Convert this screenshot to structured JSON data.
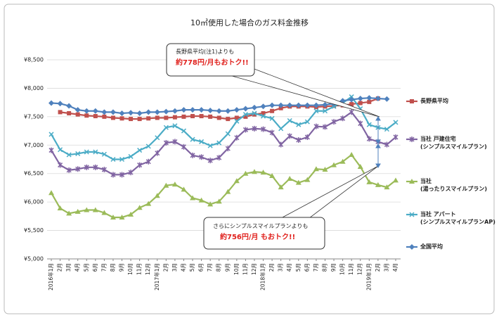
{
  "chart_data": {
    "type": "line",
    "title": "10㎥使用した場合のガス料金推移",
    "categories": [
      "2016年1月",
      "2月",
      "3月",
      "4月",
      "5月",
      "6月",
      "7月",
      "8月",
      "9月",
      "10月",
      "11月",
      "12月",
      "2017年1月",
      "2月",
      "3月",
      "4月",
      "5月",
      "6月",
      "7月",
      "8月",
      "9月",
      "10月",
      "11月",
      "12月",
      "2018年1月",
      "2月",
      "3月",
      "4月",
      "5月",
      "6月",
      "7月",
      "8月",
      "9月",
      "10月",
      "11月",
      "12月",
      "2019年1月",
      "2月",
      "3月",
      "4月"
    ],
    "ylim": [
      5000,
      8500
    ],
    "yticks": [
      {
        "value": 5000,
        "label": "¥5,000"
      },
      {
        "value": 5500,
        "label": "¥5,500"
      },
      {
        "value": 6000,
        "label": "¥6,000"
      },
      {
        "value": 6500,
        "label": "¥6,500"
      },
      {
        "value": 7000,
        "label": "¥7,000"
      },
      {
        "value": 7500,
        "label": "¥7,500"
      },
      {
        "value": 8000,
        "label": "¥8,000"
      },
      {
        "value": 8500,
        "label": "¥8,500"
      }
    ],
    "series": [
      {
        "name": "長野県平均",
        "color": "#c0504d",
        "marker": "square",
        "values": [
          null,
          7580,
          7560,
          7540,
          7520,
          7510,
          7500,
          7480,
          7470,
          7460,
          7460,
          7470,
          7480,
          7480,
          7490,
          7500,
          7510,
          7510,
          7500,
          7480,
          7460,
          7480,
          7500,
          7540,
          7560,
          7600,
          7650,
          7680,
          7680,
          7680,
          7670,
          7680,
          7690,
          7700,
          7720,
          7740,
          7760,
          7820,
          null,
          null
        ]
      },
      {
        "name": "当社 戸建住宅\n(シンプルスマイルプラン)",
        "color": "#8064a2",
        "marker": "star",
        "values": [
          6910,
          6650,
          6560,
          6580,
          6610,
          6610,
          6570,
          6480,
          6480,
          6520,
          6650,
          6710,
          6860,
          7040,
          7060,
          6970,
          6820,
          6790,
          6730,
          6780,
          6940,
          7130,
          7270,
          7290,
          7280,
          7220,
          7010,
          7160,
          7090,
          7140,
          7330,
          7320,
          7410,
          7470,
          7580,
          7380,
          7110,
          7060,
          7010,
          7140
        ]
      },
      {
        "name": "当社\n(湯ったりスマイルプラン)",
        "color": "#9bbb59",
        "marker": "triangle",
        "values": [
          6160,
          5890,
          5800,
          5830,
          5860,
          5860,
          5810,
          5730,
          5730,
          5780,
          5900,
          5970,
          6110,
          6290,
          6310,
          6220,
          6070,
          6030,
          5960,
          6010,
          6180,
          6370,
          6500,
          6530,
          6520,
          6460,
          6260,
          6410,
          6340,
          6390,
          6580,
          6570,
          6650,
          6710,
          6830,
          6620,
          6350,
          6300,
          6260,
          6380
        ]
      },
      {
        "name": "当社 アパート\n(シンプルスマイルプランAP)",
        "color": "#4bacc6",
        "marker": "x",
        "values": [
          7190,
          6920,
          6830,
          6850,
          6880,
          6880,
          6840,
          6750,
          6750,
          6800,
          6910,
          6980,
          7130,
          7310,
          7340,
          7250,
          7100,
          7060,
          6990,
          7040,
          7200,
          7420,
          7540,
          7560,
          7510,
          7470,
          7290,
          7430,
          7360,
          7410,
          7600,
          7600,
          7680,
          7740,
          7850,
          7640,
          7360,
          7310,
          7280,
          7400
        ]
      },
      {
        "name": "全国平均",
        "color": "#4f81bd",
        "marker": "diamond",
        "values": [
          7740,
          7730,
          7690,
          7620,
          7600,
          7600,
          7580,
          7580,
          7560,
          7570,
          7560,
          7580,
          7580,
          7590,
          7600,
          7620,
          7620,
          7620,
          7610,
          7600,
          7600,
          7620,
          7640,
          7660,
          7680,
          7700,
          7700,
          7700,
          7700,
          7700,
          7700,
          7710,
          7730,
          7780,
          7800,
          7820,
          7830,
          7820,
          7810,
          null
        ]
      }
    ],
    "annotations": [
      {
        "lines": [
          "長野県平均(注1)よりも",
          "約778円/月もおトク!!"
        ]
      },
      {
        "lines": [
          "さらにシンプルスマイルプランよりも",
          "約756円/月 もおトク!!"
        ]
      }
    ]
  }
}
